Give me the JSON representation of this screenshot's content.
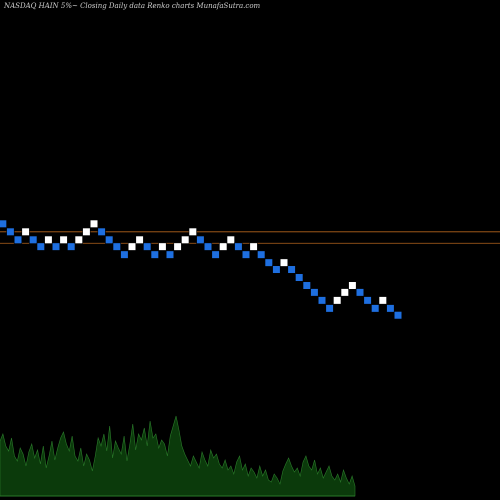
{
  "chart_data": {
    "type": "renko",
    "title": "NASDAQ HAIN  5%~  Closing Daily data  Renko  charts MunafaSutra.com",
    "brick_up_color": "#ffffff",
    "brick_down_color": "#1e6fe0",
    "reference_line_color": "#b5651d",
    "reference_levels": [
      2.05,
      1.95
    ],
    "bricks": [
      {
        "dir": "down",
        "value": 2.12
      },
      {
        "dir": "down",
        "value": 2.05
      },
      {
        "dir": "down",
        "value": 1.98
      },
      {
        "dir": "up",
        "value": 2.05
      },
      {
        "dir": "down",
        "value": 1.98
      },
      {
        "dir": "down",
        "value": 1.92
      },
      {
        "dir": "up",
        "value": 1.98
      },
      {
        "dir": "down",
        "value": 1.92
      },
      {
        "dir": "up",
        "value": 1.98
      },
      {
        "dir": "down",
        "value": 1.92
      },
      {
        "dir": "up",
        "value": 1.98
      },
      {
        "dir": "up",
        "value": 2.05
      },
      {
        "dir": "up",
        "value": 2.12
      },
      {
        "dir": "down",
        "value": 2.05
      },
      {
        "dir": "down",
        "value": 1.98
      },
      {
        "dir": "down",
        "value": 1.92
      },
      {
        "dir": "down",
        "value": 1.85
      },
      {
        "dir": "up",
        "value": 1.92
      },
      {
        "dir": "up",
        "value": 1.98
      },
      {
        "dir": "down",
        "value": 1.92
      },
      {
        "dir": "down",
        "value": 1.85
      },
      {
        "dir": "up",
        "value": 1.92
      },
      {
        "dir": "down",
        "value": 1.85
      },
      {
        "dir": "up",
        "value": 1.92
      },
      {
        "dir": "up",
        "value": 1.98
      },
      {
        "dir": "up",
        "value": 2.05
      },
      {
        "dir": "down",
        "value": 1.98
      },
      {
        "dir": "down",
        "value": 1.92
      },
      {
        "dir": "down",
        "value": 1.85
      },
      {
        "dir": "up",
        "value": 1.92
      },
      {
        "dir": "up",
        "value": 1.98
      },
      {
        "dir": "down",
        "value": 1.92
      },
      {
        "dir": "down",
        "value": 1.85
      },
      {
        "dir": "up",
        "value": 1.92
      },
      {
        "dir": "down",
        "value": 1.85
      },
      {
        "dir": "down",
        "value": 1.78
      },
      {
        "dir": "down",
        "value": 1.72
      },
      {
        "dir": "up",
        "value": 1.78
      },
      {
        "dir": "down",
        "value": 1.72
      },
      {
        "dir": "down",
        "value": 1.65
      },
      {
        "dir": "down",
        "value": 1.58
      },
      {
        "dir": "down",
        "value": 1.52
      },
      {
        "dir": "down",
        "value": 1.45
      },
      {
        "dir": "down",
        "value": 1.38
      },
      {
        "dir": "up",
        "value": 1.45
      },
      {
        "dir": "up",
        "value": 1.52
      },
      {
        "dir": "up",
        "value": 1.58
      },
      {
        "dir": "down",
        "value": 1.52
      },
      {
        "dir": "down",
        "value": 1.45
      },
      {
        "dir": "down",
        "value": 1.38
      },
      {
        "dir": "up",
        "value": 1.45
      },
      {
        "dir": "down",
        "value": 1.38
      },
      {
        "dir": "down",
        "value": 1.32
      }
    ],
    "volume": [
      0.55,
      0.62,
      0.5,
      0.45,
      0.58,
      0.4,
      0.35,
      0.48,
      0.42,
      0.3,
      0.44,
      0.52,
      0.38,
      0.46,
      0.32,
      0.5,
      0.28,
      0.4,
      0.55,
      0.36,
      0.48,
      0.58,
      0.64,
      0.52,
      0.45,
      0.6,
      0.4,
      0.35,
      0.48,
      0.3,
      0.42,
      0.36,
      0.25,
      0.4,
      0.58,
      0.5,
      0.62,
      0.45,
      0.7,
      0.38,
      0.55,
      0.48,
      0.42,
      0.6,
      0.35,
      0.52,
      0.72,
      0.46,
      0.62,
      0.56,
      0.68,
      0.5,
      0.75,
      0.58,
      0.62,
      0.48,
      0.56,
      0.52,
      0.4,
      0.6,
      0.7,
      0.8,
      0.66,
      0.5,
      0.42,
      0.36,
      0.3,
      0.4,
      0.34,
      0.28,
      0.44,
      0.36,
      0.3,
      0.46,
      0.38,
      0.42,
      0.32,
      0.28,
      0.36,
      0.26,
      0.3,
      0.22,
      0.34,
      0.4,
      0.26,
      0.32,
      0.2,
      0.28,
      0.24,
      0.18,
      0.3,
      0.2,
      0.26,
      0.16,
      0.14,
      0.22,
      0.18,
      0.12,
      0.25,
      0.32,
      0.38,
      0.3,
      0.24,
      0.28,
      0.2,
      0.34,
      0.4,
      0.3,
      0.26,
      0.36,
      0.22,
      0.28,
      0.18,
      0.24,
      0.3,
      0.2,
      0.16,
      0.22,
      0.14,
      0.26,
      0.18,
      0.12,
      0.2,
      0.1
    ]
  }
}
